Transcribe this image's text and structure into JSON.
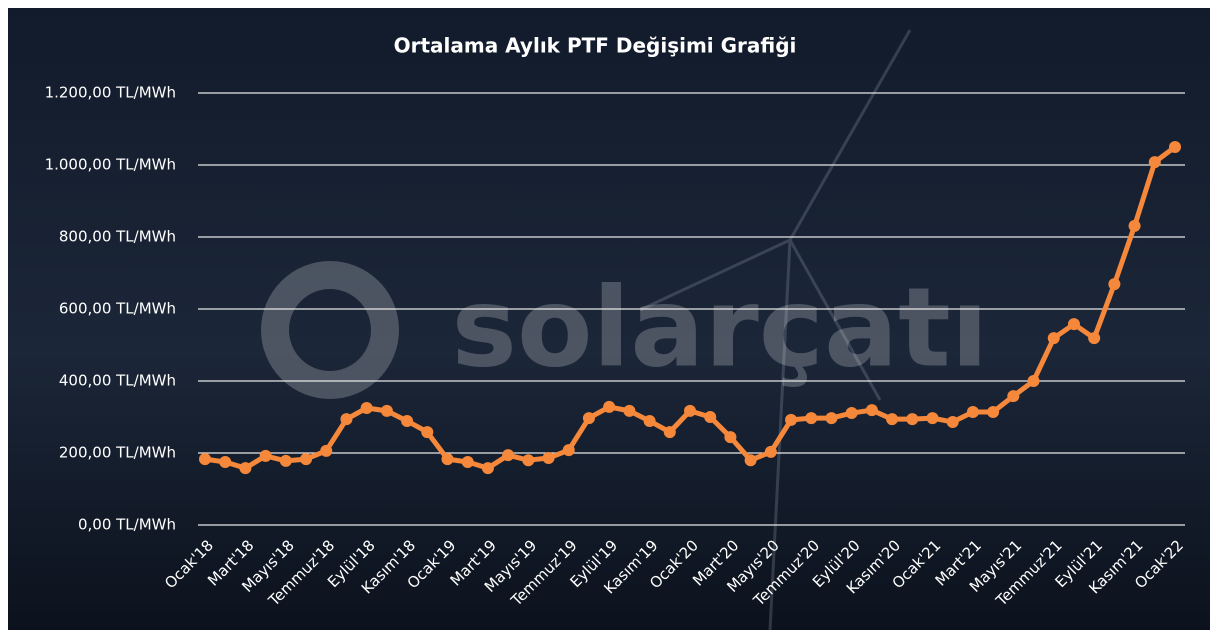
{
  "chart_data": {
    "type": "line",
    "title": "Ortalama Aylık PTF Değişimi Grafiği",
    "watermark": "solarçatı",
    "categories": [
      "Ocak'18",
      null,
      "Mart'18",
      null,
      "Mayıs'18",
      null,
      "Temmuz'18",
      null,
      "Eylül'18",
      null,
      "Kasım'18",
      null,
      "Ocak'19",
      null,
      "Mart'19",
      null,
      "Mayıs'19",
      null,
      "Temmuz'19",
      null,
      "Eylül'19",
      null,
      "Kasım'19",
      null,
      "Ocak'20",
      null,
      "Mart'20",
      null,
      "Mayıs'20",
      null,
      "Temmuz'20",
      null,
      "Eylül'20",
      null,
      "Kasım'20",
      null,
      "Ocak'21",
      null,
      "Mart'21",
      null,
      "Mayıs'21",
      null,
      "Temmuz'21",
      null,
      "Eylül'21",
      null,
      "Kasım'21",
      null,
      "Ocak'22"
    ],
    "values": [
      183,
      175,
      158,
      192,
      178,
      183,
      206,
      294,
      325,
      317,
      289,
      258,
      183,
      175,
      158,
      194,
      180,
      186,
      208,
      297,
      328,
      317,
      289,
      258,
      317,
      300,
      244,
      180,
      203,
      292,
      297,
      297,
      311,
      319,
      294,
      294,
      297,
      286,
      314,
      314,
      358,
      400,
      519,
      558,
      519,
      669,
      831,
      1008,
      1050
    ],
    "color": "#f5883a",
    "ylim": [
      0,
      1200
    ],
    "yticks": [
      {
        "value": 0,
        "label": "0,00 TL/MWh"
      },
      {
        "value": 200,
        "label": "200,00 TL/MWh"
      },
      {
        "value": 400,
        "label": "400,00 TL/MWh"
      },
      {
        "value": 600,
        "label": "600,00 TL/MWh"
      },
      {
        "value": 800,
        "label": "800,00 TL/MWh"
      },
      {
        "value": 1000,
        "label": "1.000,00 TL/MWh"
      },
      {
        "value": 1200,
        "label": "1.200,00 TL/MWh"
      }
    ],
    "grid": true
  }
}
